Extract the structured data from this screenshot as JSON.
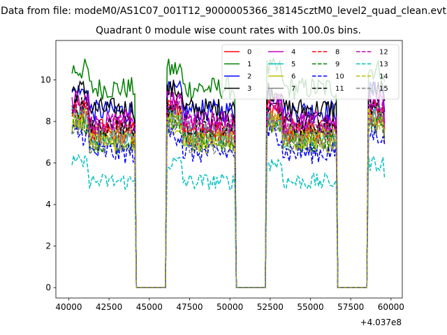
{
  "suptitle": "Data from file: modeM0/AS1C07_001T12_9000005366_38145cztM0_level2_quad_clean.evt",
  "chart_data": {
    "type": "line",
    "title": "Quadrant 0 module wise count rates with 100.0s bins.",
    "xlabel": "",
    "ylabel": "",
    "offset_text": "+4.037e8",
    "xlim": [
      39200,
      60700
    ],
    "ylim": [
      -0.5,
      11.9
    ],
    "xticks": [
      40000,
      42500,
      45000,
      47500,
      50000,
      52500,
      55000,
      57500,
      60000
    ],
    "xtick_labels": [
      "40000",
      "42500",
      "45000",
      "47500",
      "50000",
      "52500",
      "55000",
      "57500",
      "60000"
    ],
    "yticks": [
      0,
      2,
      4,
      6,
      8,
      10
    ],
    "ytick_labels": [
      "0",
      "2",
      "4",
      "6",
      "8",
      "10"
    ],
    "bin_seconds": 100,
    "x_start": 40200,
    "x_end": 59600,
    "gaps": [
      [
        44200,
        46000
      ],
      [
        50400,
        52200
      ],
      [
        56700,
        58500
      ]
    ],
    "legend_position": "upper right",
    "grid": false,
    "series": [
      {
        "name": "0",
        "color": "#ff0000",
        "dash": "solid",
        "mean": 7.7
      },
      {
        "name": "1",
        "color": "#008000",
        "dash": "solid",
        "mean": 9.6
      },
      {
        "name": "2",
        "color": "#0000ff",
        "dash": "solid",
        "mean": 8.5
      },
      {
        "name": "3",
        "color": "#000000",
        "dash": "solid",
        "mean": 8.6
      },
      {
        "name": "4",
        "color": "#bf00bf",
        "dash": "solid",
        "mean": 8.0
      },
      {
        "name": "5",
        "color": "#00bfbf",
        "dash": "solid",
        "mean": 7.3
      },
      {
        "name": "6",
        "color": "#bfbf00",
        "dash": "solid",
        "mean": 7.0
      },
      {
        "name": "7",
        "color": "#808080",
        "dash": "solid",
        "mean": 7.5
      },
      {
        "name": "8",
        "color": "#ff0000",
        "dash": "dashed",
        "mean": 7.4
      },
      {
        "name": "9",
        "color": "#008000",
        "dash": "dashed",
        "mean": 7.0
      },
      {
        "name": "10",
        "color": "#0000ff",
        "dash": "dashed",
        "mean": 6.5
      },
      {
        "name": "11",
        "color": "#000000",
        "dash": "dashed",
        "mean": 7.8
      },
      {
        "name": "12",
        "color": "#bf00bf",
        "dash": "dashed",
        "mean": 7.9
      },
      {
        "name": "13",
        "color": "#00bfbf",
        "dash": "dashed",
        "mean": 5.1
      },
      {
        "name": "14",
        "color": "#bfbf00",
        "dash": "dashed",
        "mean": 7.2
      },
      {
        "name": "15",
        "color": "#808080",
        "dash": "dashed",
        "mean": 7.0
      }
    ]
  }
}
